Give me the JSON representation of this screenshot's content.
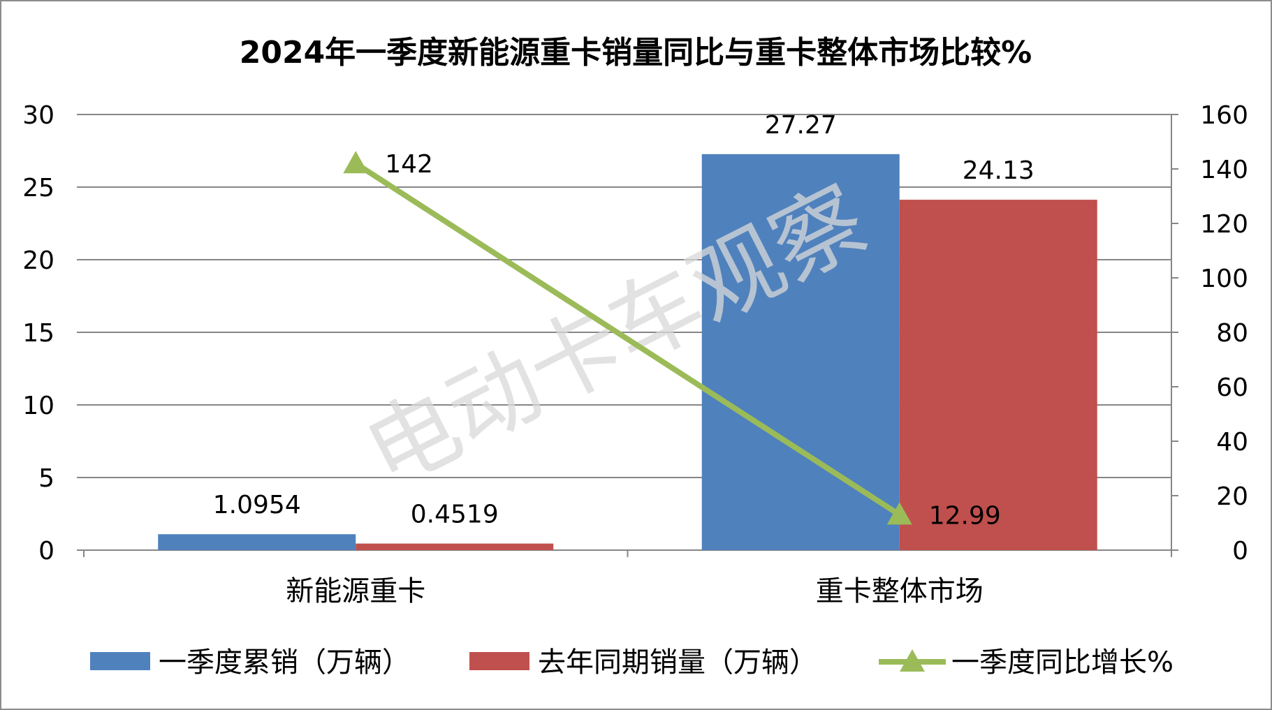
{
  "chart_data": {
    "type": "bar",
    "title": "2024年一季度新能源重卡销量同比与重卡整体市场比较%",
    "categories": [
      "新能源重卡",
      "重卡整体市场"
    ],
    "series": [
      {
        "name": "一季度累销（万辆）",
        "type": "bar",
        "axis": "left",
        "color": "#4f81bd",
        "values": [
          1.0954,
          27.27
        ],
        "labels": [
          "1.0954",
          "27.27"
        ]
      },
      {
        "name": "去年同期销量（万辆）",
        "type": "bar",
        "axis": "left",
        "color": "#c0504d",
        "values": [
          0.4519,
          24.13
        ],
        "labels": [
          "0.4519",
          "24.13"
        ]
      },
      {
        "name": "一季度同比增长%",
        "type": "line",
        "axis": "right",
        "marker": "triangle",
        "color": "#9bbb59",
        "values": [
          142,
          12.99
        ],
        "labels": [
          "142",
          "12.99"
        ]
      }
    ],
    "y_left": {
      "min": 0,
      "max": 30,
      "ticks": [
        "0",
        "5",
        "10",
        "15",
        "20",
        "25",
        "30"
      ]
    },
    "y_right": {
      "min": 0,
      "max": 160,
      "ticks": [
        "0",
        "20",
        "40",
        "60",
        "80",
        "100",
        "120",
        "140",
        "160"
      ]
    },
    "grid": true,
    "legend_position": "bottom",
    "watermark": "电动卡车观察"
  }
}
